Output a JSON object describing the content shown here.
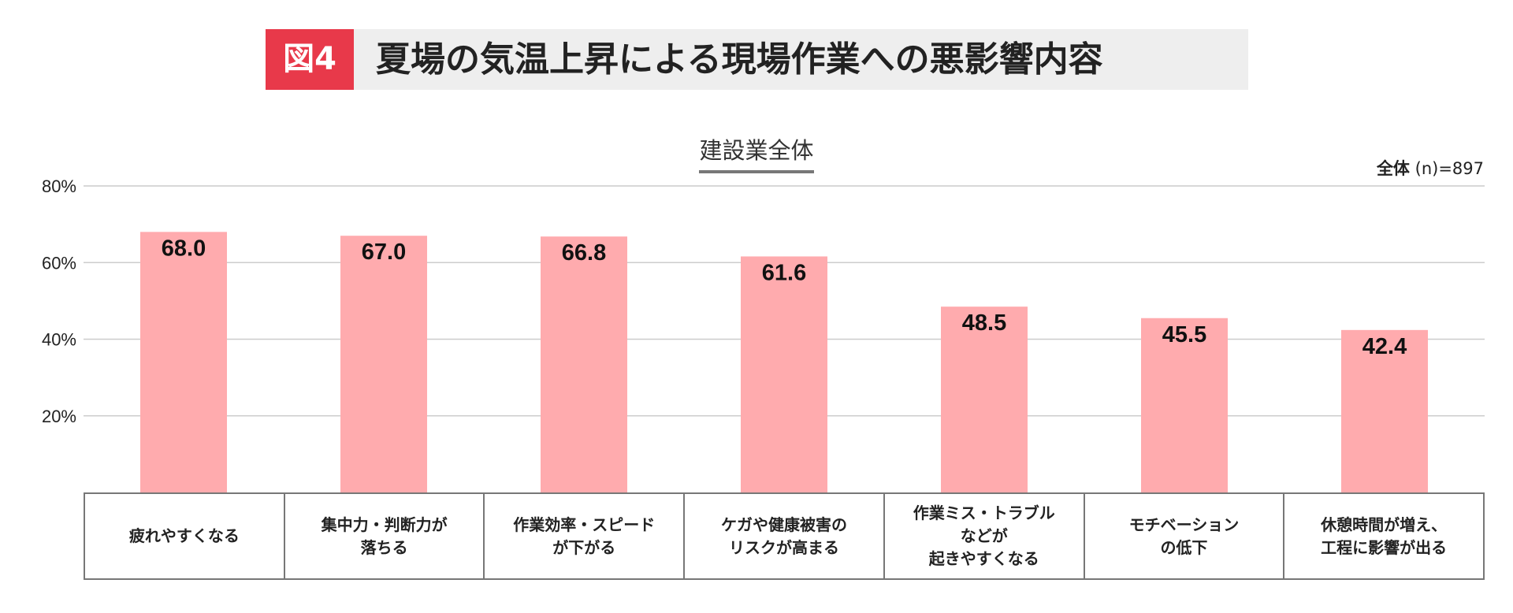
{
  "header": {
    "badge": "図4",
    "title": "夏場の気温上昇による現場作業への悪影響内容"
  },
  "chart_heading": "建設業全体",
  "sample_note": {
    "label": "全体",
    "value": "(n)=897"
  },
  "chart_data": {
    "type": "bar",
    "title": "建設業全体",
    "categories": [
      "疲れやすくなる",
      "集中力・判断力が\n落ちる",
      "作業効率・スピード\nが下がる",
      "ケガや健康被害の\nリスクが高まる",
      "作業ミス・トラブル\nなどが\n起きやすくなる",
      "モチベーション\nの低下",
      "休憩時間が増え、\n工程に影響が出る"
    ],
    "values": [
      68.0,
      67.0,
      66.8,
      61.6,
      48.5,
      45.5,
      42.4
    ],
    "value_labels": [
      "68.0",
      "67.0",
      "66.8",
      "61.6",
      "48.5",
      "45.5",
      "42.4"
    ],
    "ylim": [
      0,
      80
    ],
    "yticks": [
      20,
      40,
      60,
      80
    ],
    "ytick_labels": [
      "20%",
      "40%",
      "60%",
      "80%"
    ],
    "grid": true,
    "bar_color": "#ffabae",
    "grid_color": "#cccccc"
  }
}
